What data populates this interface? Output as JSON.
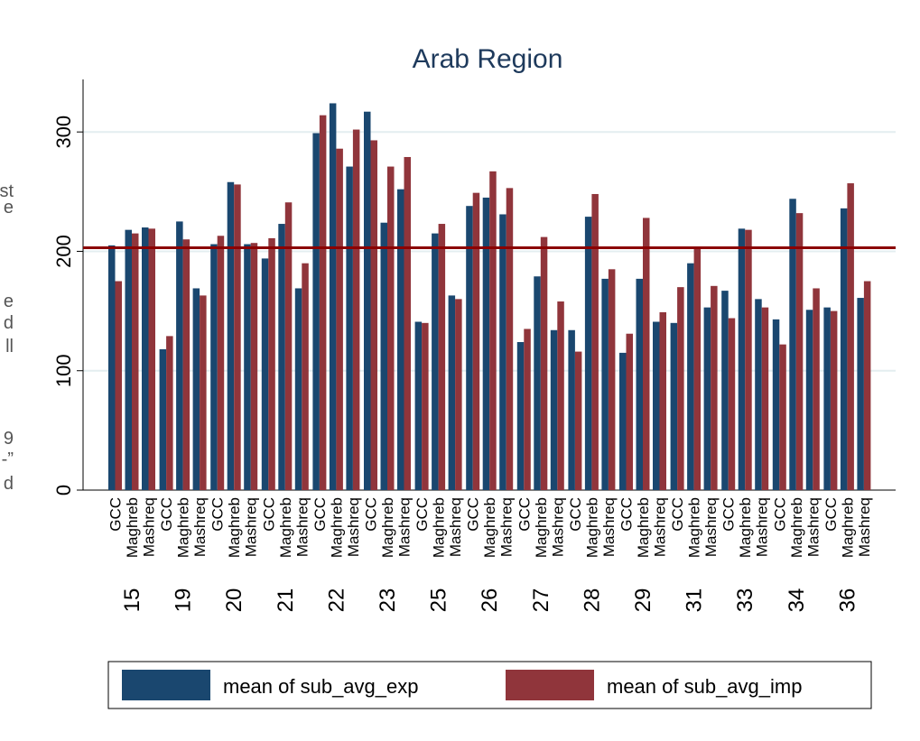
{
  "page_fragments": [
    "st",
    "e",
    "e",
    "d",
    "ll",
    "9",
    "-”",
    "d"
  ],
  "chart_data": {
    "type": "bar",
    "title": "Arab Region",
    "groups": [
      "15",
      "19",
      "20",
      "21",
      "22",
      "23",
      "25",
      "26",
      "27",
      "28",
      "29",
      "31",
      "33",
      "34",
      "36"
    ],
    "subgroups": [
      "GCC",
      "Maghreb",
      "Mashreq"
    ],
    "series": [
      {
        "name": "mean of sub_avg_exp",
        "color": "#1a476f",
        "values": [
          205,
          218,
          220,
          118,
          225,
          169,
          206,
          258,
          206,
          194,
          223,
          169,
          299,
          324,
          271,
          317,
          224,
          252,
          141,
          215,
          163,
          238,
          245,
          231,
          124,
          179,
          134,
          134,
          229,
          177,
          115,
          177,
          141,
          140,
          190,
          153,
          167,
          219,
          160,
          143,
          244,
          151,
          153,
          236,
          161
        ]
      },
      {
        "name": "mean of sub_avg_imp",
        "color": "#90353b",
        "values": [
          175,
          215,
          219,
          129,
          210,
          163,
          213,
          256,
          207,
          211,
          241,
          190,
          314,
          286,
          302,
          293,
          271,
          279,
          140,
          223,
          160,
          249,
          267,
          253,
          135,
          212,
          158,
          116,
          248,
          185,
          131,
          228,
          149,
          170,
          203,
          171,
          144,
          218,
          153,
          122,
          232,
          169,
          150,
          257,
          175
        ]
      }
    ],
    "reference_line": {
      "value": 203,
      "color": "#8b0000"
    },
    "ylim": [
      0,
      344
    ],
    "yticks": [
      0,
      100,
      200,
      300
    ],
    "grid": true,
    "legend": "bottom"
  }
}
